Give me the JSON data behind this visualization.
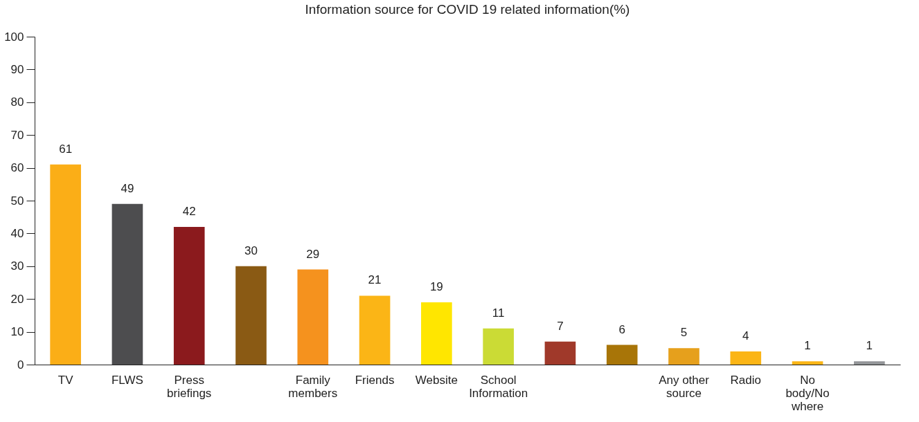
{
  "chart_data": {
    "type": "bar",
    "title": "Information source for COVID 19 related information(%)",
    "categories": [
      "TV",
      "FLWS",
      "Press briefings",
      null,
      "Family members",
      "Friends",
      "Website",
      "School Information",
      null,
      null,
      "Any other source",
      "Radio",
      "No body/No where",
      null
    ],
    "values": [
      61,
      49,
      42,
      30,
      29,
      21,
      19,
      11,
      7,
      6,
      5,
      4,
      1,
      1
    ],
    "colors": [
      "#fbae17",
      "#4d4d4f",
      "#8b1a1d",
      "#8a5a14",
      "#f5921e",
      "#fbb516",
      "#ffe600",
      "#cbdb35",
      "#a0392a",
      "#a87508",
      "#e6a01c",
      "#fbb516",
      "#fbb516",
      "#939598"
    ],
    "ylim": [
      0,
      100
    ],
    "yticks": [
      0,
      10,
      20,
      30,
      40,
      50,
      60,
      70,
      80,
      90,
      100
    ],
    "grid": false,
    "data_labels": true
  }
}
